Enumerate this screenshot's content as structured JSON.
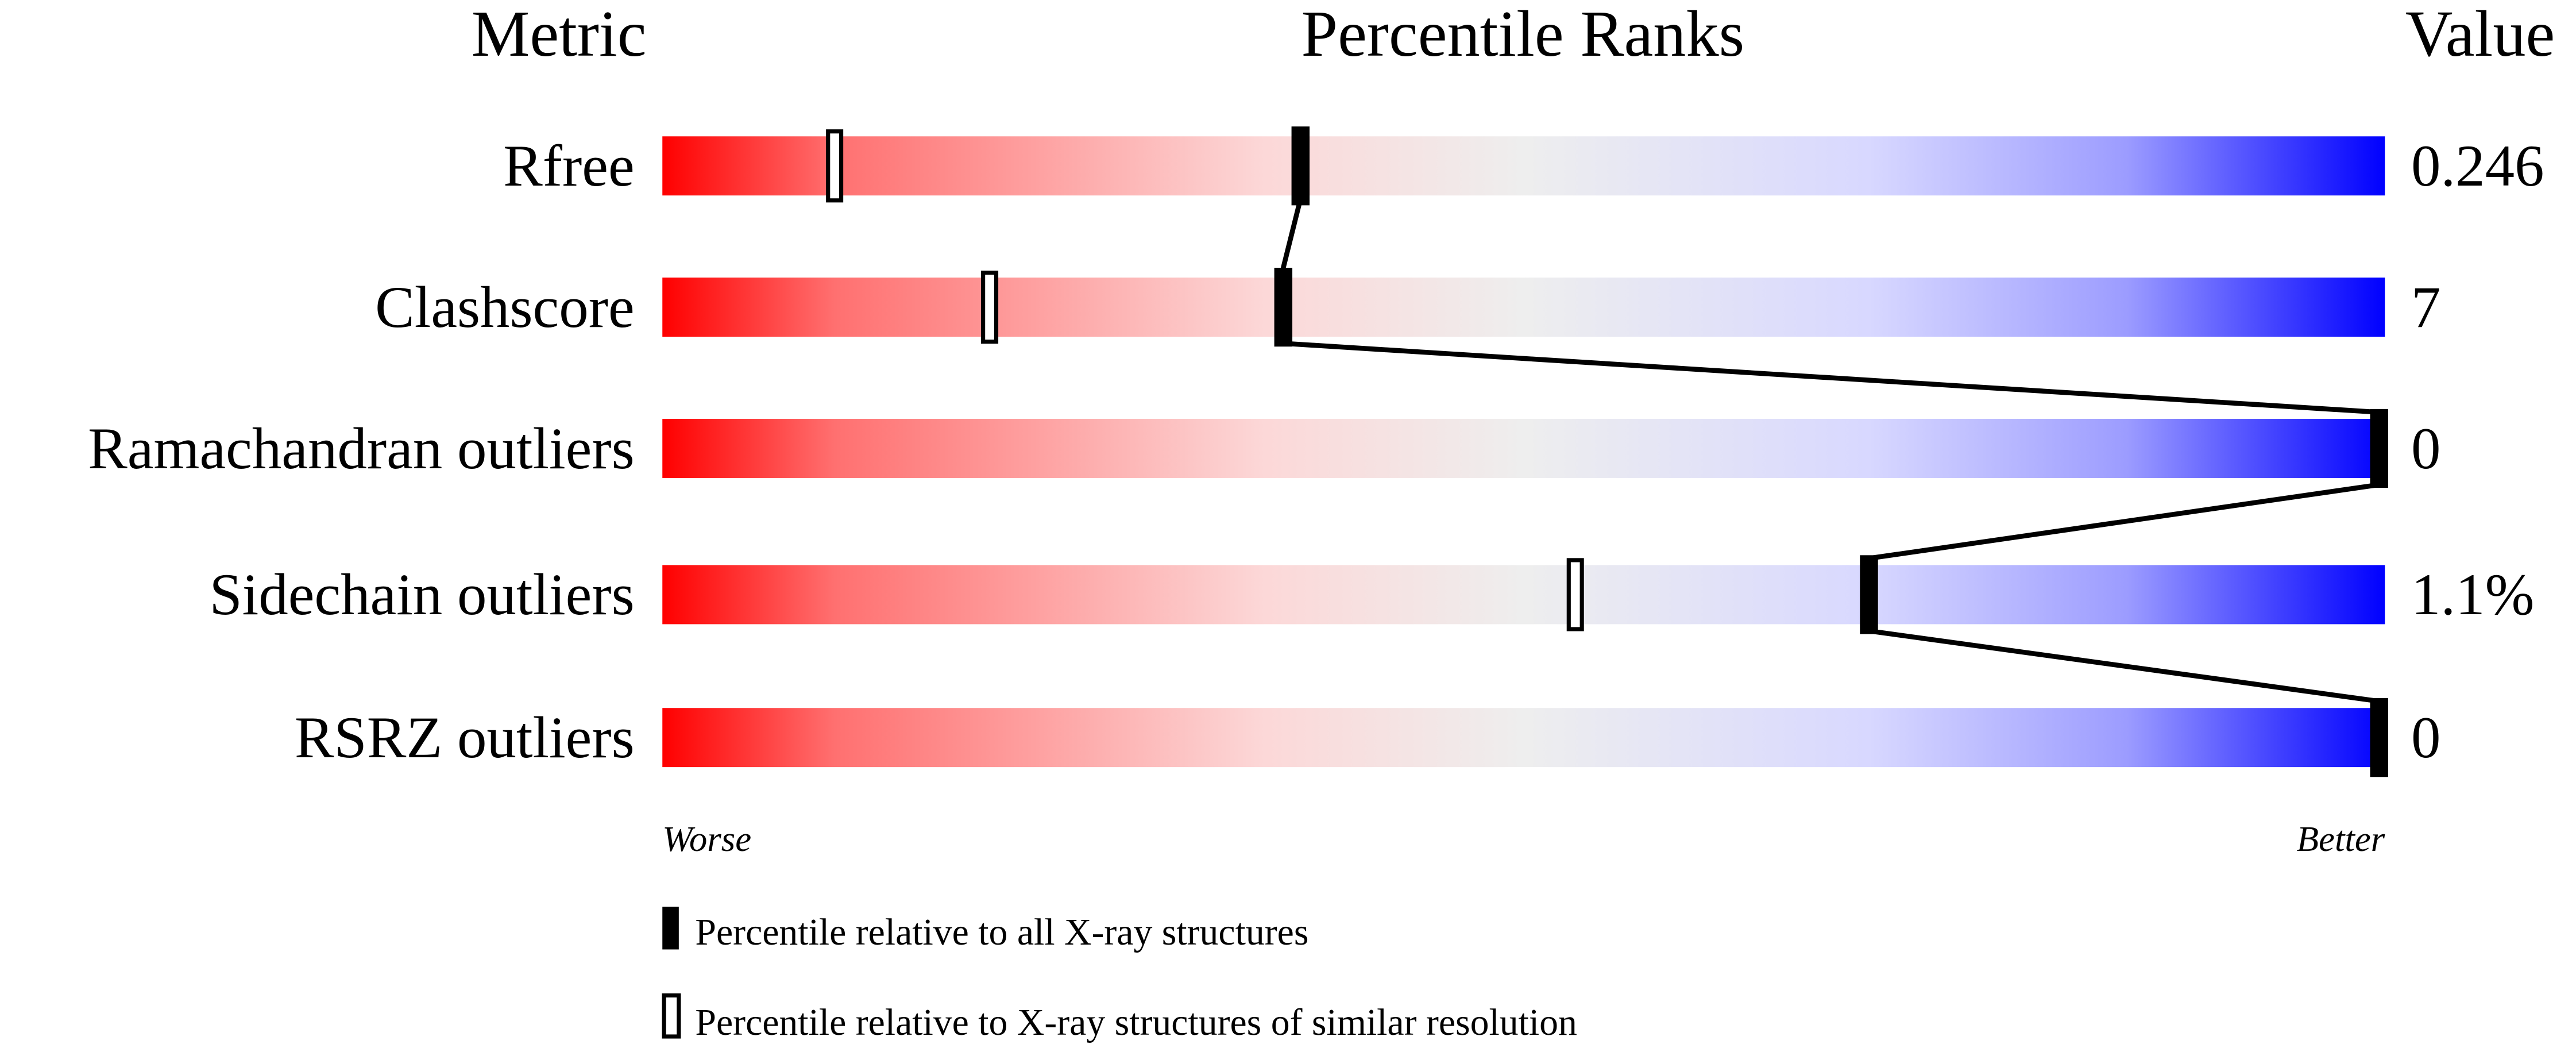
{
  "chart_data": {
    "type": "bar",
    "headers": {
      "metric": "Metric",
      "ranks": "Percentile Ranks",
      "value": "Value"
    },
    "xlim": [
      0,
      100
    ],
    "rows": [
      {
        "metric": "Rfree",
        "value": "0.246",
        "percentile_all": 37,
        "percentile_similar": 10
      },
      {
        "metric": "Clashscore",
        "value": "7",
        "percentile_all": 36,
        "percentile_similar": 19
      },
      {
        "metric": "Ramachandran outliers",
        "value": "0",
        "percentile_all": 100,
        "percentile_similar": 100
      },
      {
        "metric": "Sidechain outliers",
        "value": "1.1%",
        "percentile_all": 70,
        "percentile_similar": 53
      },
      {
        "metric": "RSRZ outliers",
        "value": "0",
        "percentile_all": 100,
        "percentile_similar": 100
      }
    ],
    "axis": {
      "left_label": "Worse",
      "right_label": "Better"
    },
    "legend": {
      "all": "Percentile relative to all X-ray structures",
      "similar": "Percentile relative to X-ray structures of similar resolution"
    },
    "colors": {
      "worse": "#ff0000",
      "middle": "#eeeeee",
      "better": "#0000ff",
      "marker": "#000000"
    }
  }
}
